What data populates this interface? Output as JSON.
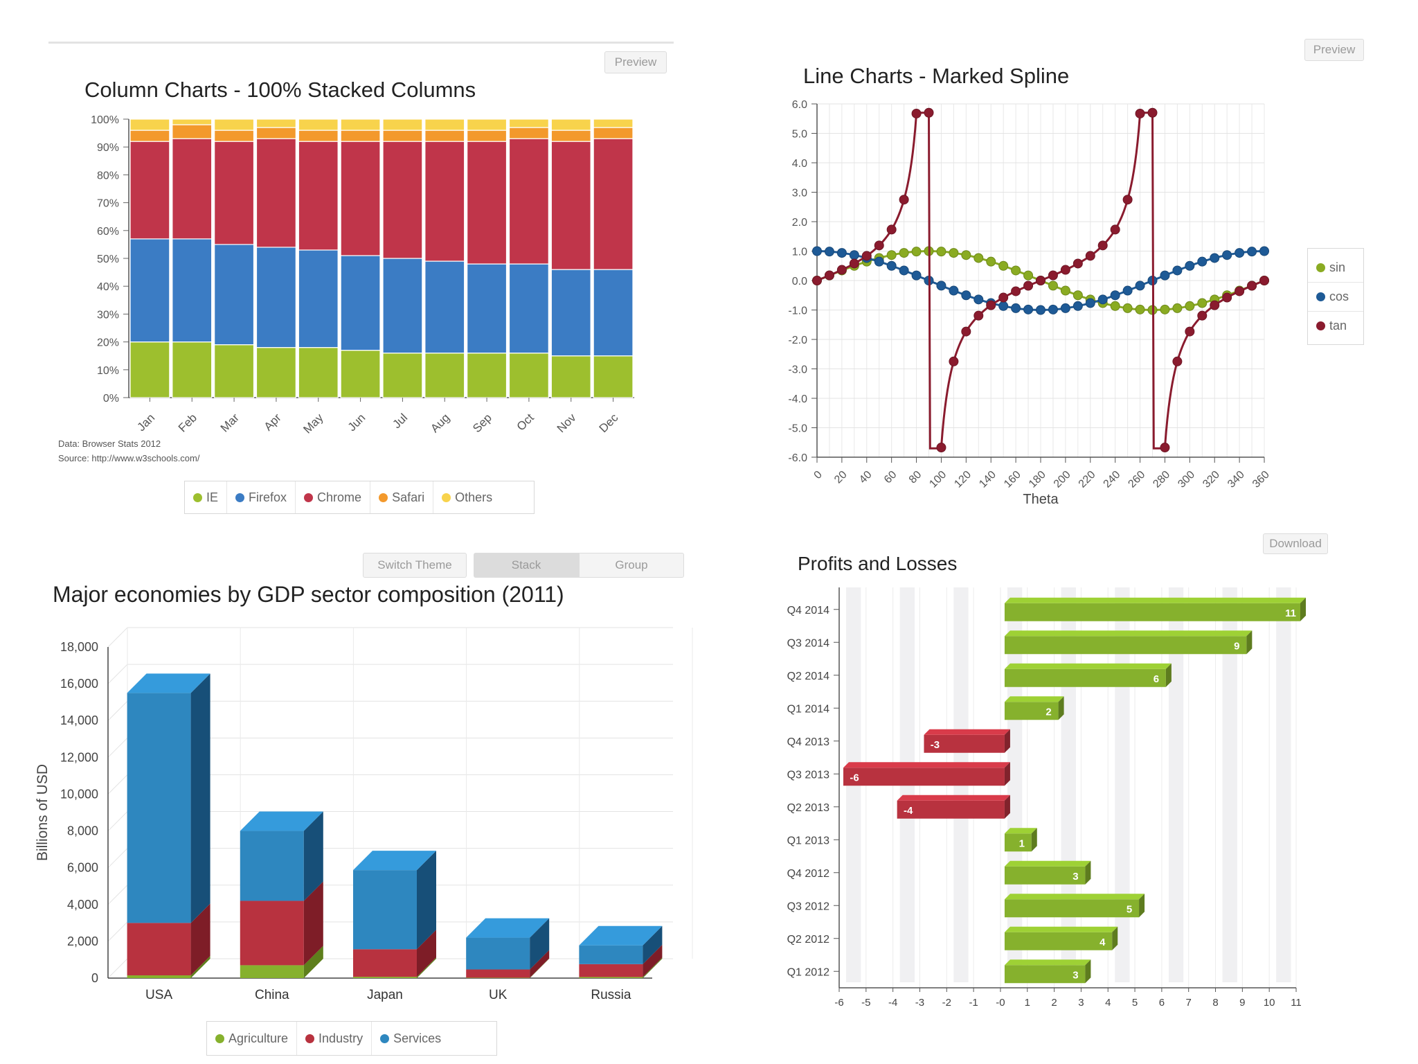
{
  "controls": {
    "preview_label": "Preview",
    "download_label": "Download",
    "switch_theme_label": "Switch Theme",
    "stack_label": "Stack",
    "group_label": "Group"
  },
  "chart_data": [
    {
      "id": "stacked-columns",
      "type": "bar",
      "stacking": "percent",
      "title": "Column Charts - 100% Stacked Columns",
      "categories": [
        "Jan",
        "Feb",
        "Mar",
        "Apr",
        "May",
        "Jun",
        "Jul",
        "Aug",
        "Sep",
        "Oct",
        "Nov",
        "Dec"
      ],
      "series": [
        {
          "name": "IE",
          "color": "#9dbf2e",
          "values": [
            20,
            20,
            19,
            18,
            18,
            17,
            16,
            16,
            16,
            16,
            15,
            15
          ]
        },
        {
          "name": "Firefox",
          "color": "#3b7cc4",
          "values": [
            37,
            37,
            36,
            36,
            35,
            34,
            34,
            33,
            32,
            32,
            31,
            31
          ]
        },
        {
          "name": "Chrome",
          "color": "#c0354a",
          "values": [
            35,
            36,
            37,
            39,
            39,
            41,
            42,
            43,
            44,
            45,
            46,
            47
          ]
        },
        {
          "name": "Safari",
          "color": "#f3992c",
          "values": [
            4,
            5,
            4,
            4,
            4,
            4,
            4,
            4,
            4,
            4,
            4,
            4
          ]
        },
        {
          "name": "Others",
          "color": "#f8d34c",
          "values": [
            4,
            2,
            4,
            3,
            4,
            4,
            4,
            4,
            4,
            3,
            4,
            3
          ]
        }
      ],
      "y_ticks": [
        "0%",
        "10%",
        "20%",
        "30%",
        "40%",
        "50%",
        "60%",
        "70%",
        "80%",
        "90%",
        "100%"
      ],
      "ylim": [
        0,
        100
      ],
      "credits": [
        "Data: Browser Stats 2012",
        "Source: http://www.w3schools.com/"
      ],
      "legend_position": "bottom-center"
    },
    {
      "id": "marked-spline",
      "type": "line",
      "title": "Line Charts - Marked Spline",
      "xlabel": "Theta",
      "x_ticks": [
        "0",
        "20",
        "40",
        "60",
        "80",
        "100",
        "120",
        "140",
        "160",
        "180",
        "200",
        "220",
        "240",
        "260",
        "280",
        "300",
        "320",
        "340",
        "360"
      ],
      "y_ticks": [
        "-6.0",
        "-5.0",
        "-4.0",
        "-3.0",
        "-2.0",
        "-1.0",
        "0.0",
        "1.0",
        "2.0",
        "3.0",
        "4.0",
        "5.0",
        "6.0"
      ],
      "xlim": [
        0,
        360
      ],
      "ylim": [
        -6,
        6
      ],
      "x_step": 5,
      "series": [
        {
          "name": "sin",
          "color": "#8aab22",
          "function": "sin"
        },
        {
          "name": "cos",
          "color": "#1e5a96",
          "function": "cos"
        },
        {
          "name": "tan",
          "color": "#8a1b2e",
          "function": "tan"
        }
      ],
      "legend_position": "right"
    },
    {
      "id": "gdp-sectors",
      "type": "bar",
      "stacking": "normal",
      "title": "Major economies by GDP sector composition (2011)",
      "ylabel": "Billions of USD",
      "categories": [
        "USA",
        "China",
        "Japan",
        "UK",
        "Russia"
      ],
      "series": [
        {
          "name": "Agriculture",
          "color": "#86b12d",
          "dark": "#5e7f1c",
          "values": [
            150,
            700,
            70,
            20,
            60
          ]
        },
        {
          "name": "Industry",
          "color": "#b8323f",
          "dark": "#7e1d27",
          "values": [
            2850,
            3500,
            1500,
            450,
            700
          ]
        },
        {
          "name": "Services",
          "color": "#2e87bf",
          "dark": "#174f78",
          "values": [
            12500,
            3800,
            4300,
            1730,
            1020
          ]
        }
      ],
      "y_ticks": [
        "0",
        "2,000",
        "4,000",
        "6,000",
        "8,000",
        "10,000",
        "12,000",
        "14,000",
        "16,000",
        "18,000"
      ],
      "ylim": [
        0,
        18000
      ],
      "legend_position": "bottom-center"
    },
    {
      "id": "profits-losses",
      "type": "bar",
      "orientation": "horizontal",
      "title": "Profits and Losses",
      "categories": [
        "Q4 2014",
        "Q3 2014",
        "Q2 2014",
        "Q1 2014",
        "Q4 2013",
        "Q3 2013",
        "Q2 2013",
        "Q1 2013",
        "Q4 2012",
        "Q3 2012",
        "Q2 2012",
        "Q1 2012"
      ],
      "values": [
        11,
        9,
        6,
        2,
        -3,
        -6,
        -4,
        1,
        3,
        5,
        4,
        3
      ],
      "x_ticks": [
        "-6",
        "-5",
        "-4",
        "-3",
        "-2",
        "-1",
        "-0",
        "1",
        "2",
        "3",
        "4",
        "5",
        "6",
        "7",
        "8",
        "9",
        "10",
        "11"
      ],
      "xlim": [
        -6,
        11
      ],
      "positive_color": "#86b12d",
      "negative_color": "#b8323f"
    }
  ]
}
